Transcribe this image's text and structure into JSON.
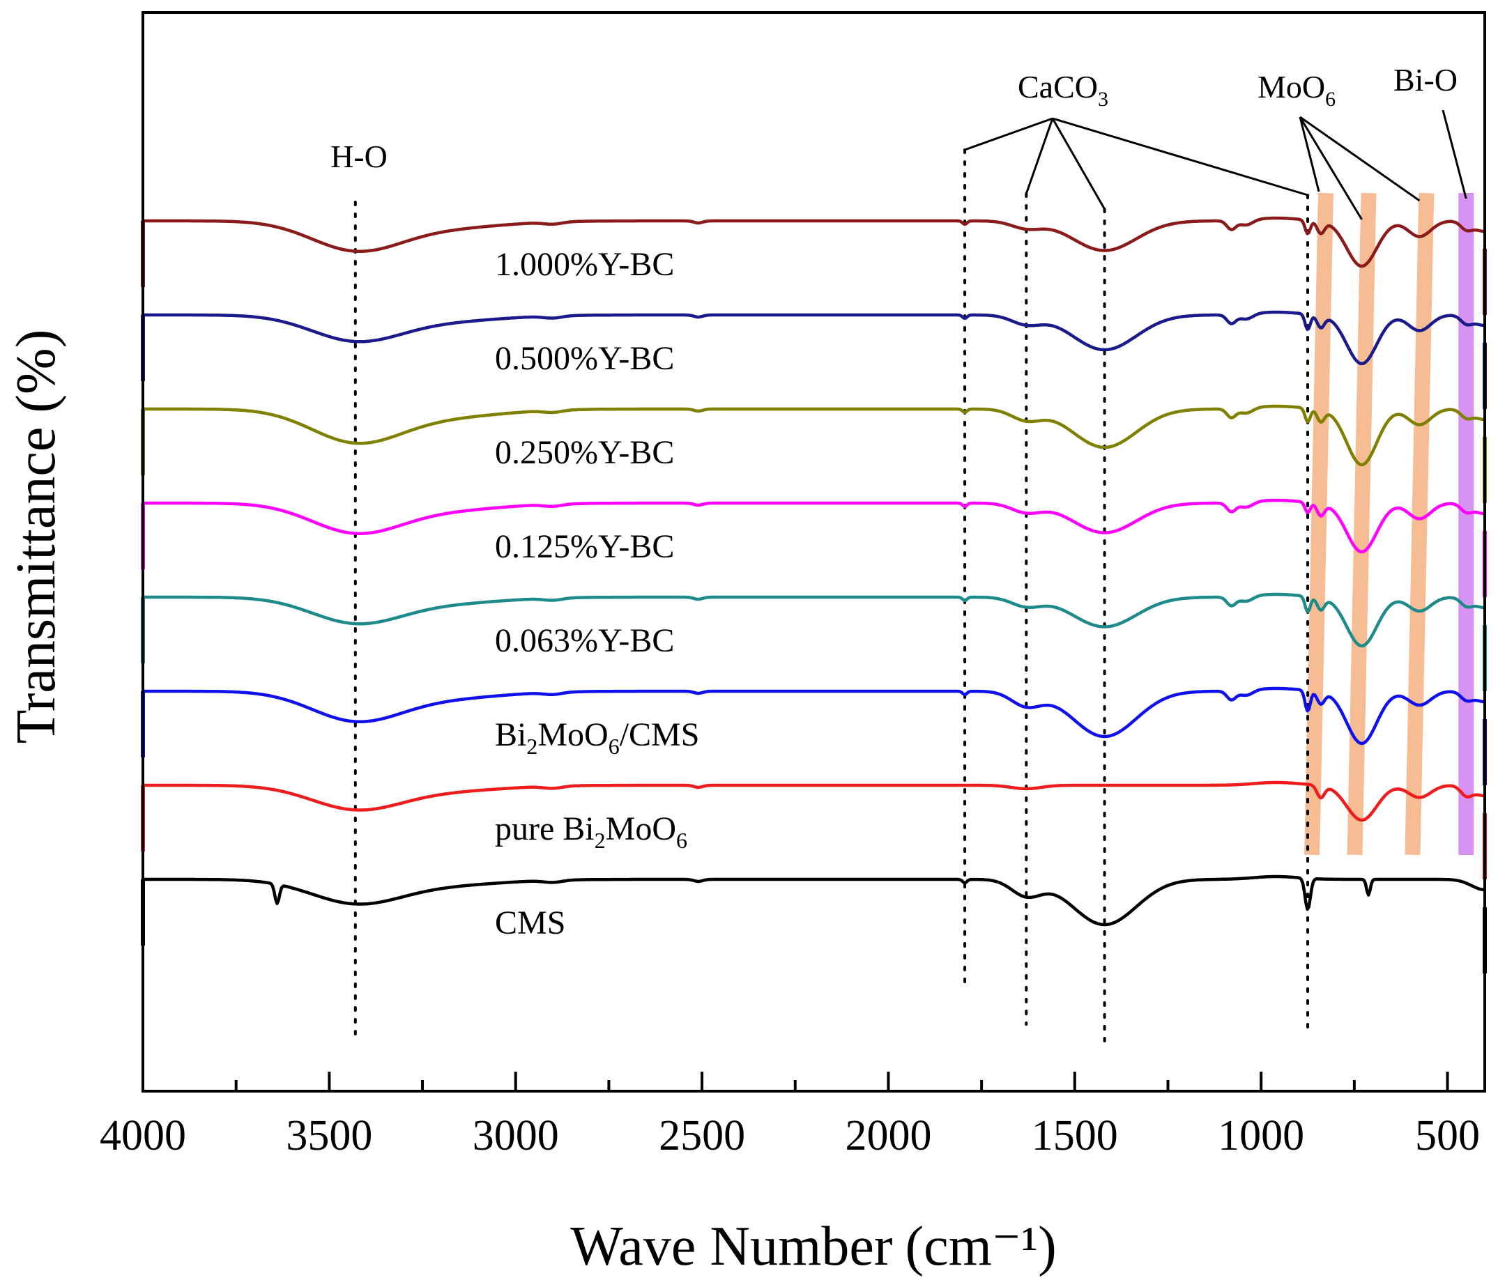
{
  "chart_data": {
    "type": "line",
    "title": "",
    "xlabel": "Wave Number",
    "xlabel_unit": "(cm⁻¹)",
    "ylabel": "Transmittance (%)",
    "xlim": [
      4000,
      400
    ],
    "x_reversed": true,
    "xticks": [
      4000,
      3500,
      3000,
      2500,
      2000,
      1500,
      1000,
      500
    ],
    "minor_tick_step": 250,
    "grid": false,
    "series": [
      {
        "name": "1.000%Y-BC",
        "label_main": "1.000%Y-BC",
        "label_sub": "",
        "label_tail": "",
        "color": "#8b1a1a",
        "offset": 7,
        "variant": "bc",
        "peaks": {
          "oh": 0.8,
          "caco3_1630": 0.2,
          "caco3_1420": 0.85,
          "sharp_875": 0.4,
          "moo6_730": 1.3,
          "moo6_580": 0.45,
          "bio_450": 0.2
        }
      },
      {
        "name": "0.500%Y-BC",
        "label_main": "0.500%Y-BC",
        "label_sub": "",
        "label_tail": "",
        "color": "#1a1a8c",
        "offset": 6,
        "variant": "bc",
        "peaks": {
          "oh": 0.7,
          "caco3_1630": 0.25,
          "caco3_1420": 1.0,
          "sharp_875": 0.45,
          "moo6_730": 1.4,
          "moo6_580": 0.45,
          "bio_450": 0.2
        }
      },
      {
        "name": "0.250%Y-BC",
        "label_main": "0.250%Y-BC",
        "label_sub": "",
        "label_tail": "",
        "color": "#808000",
        "offset": 5,
        "variant": "bc",
        "peaks": {
          "oh": 0.9,
          "caco3_1630": 0.3,
          "caco3_1420": 1.1,
          "sharp_875": 0.4,
          "moo6_730": 1.6,
          "moo6_580": 0.45,
          "bio_450": 0.2
        }
      },
      {
        "name": "0.125%Y-BC",
        "label_main": "0.125%Y-BC",
        "label_sub": "",
        "label_tail": "",
        "color": "#ff00ff",
        "offset": 4,
        "variant": "bc",
        "peaks": {
          "oh": 0.8,
          "caco3_1630": 0.25,
          "caco3_1420": 0.85,
          "sharp_875": 0.3,
          "moo6_730": 1.4,
          "moo6_580": 0.45,
          "bio_450": 0.2
        }
      },
      {
        "name": "0.063%Y-BC",
        "label_main": "0.063%Y-BC",
        "label_sub": "",
        "label_tail": "",
        "color": "#1f8a8a",
        "offset": 3,
        "variant": "bc",
        "peaks": {
          "oh": 0.7,
          "caco3_1630": 0.25,
          "caco3_1420": 0.85,
          "sharp_875": 0.45,
          "moo6_730": 1.4,
          "moo6_580": 0.4,
          "bio_450": 0.2
        }
      },
      {
        "name": "Bi2MoO6/CMS",
        "label_main": "Bi",
        "label_sub": "2",
        "label_tail": "MoO",
        "label_sub2": "6",
        "label_end": "/CMS",
        "color": "#1010ee",
        "offset": 2,
        "variant": "bc",
        "peaks": {
          "oh": 0.8,
          "caco3_1630": 0.4,
          "caco3_1420": 1.3,
          "sharp_875": 0.6,
          "moo6_730": 1.5,
          "moo6_580": 0.4,
          "bio_450": 0.2
        }
      },
      {
        "name": "pure Bi2MoO6",
        "label_main": "pure Bi",
        "label_sub": "2",
        "label_tail": "MoO",
        "label_sub2": "6",
        "label_end": "",
        "color": "#ee1c1c",
        "offset": 1,
        "variant": "pure",
        "peaks": {
          "oh": 0.65,
          "caco3_1630": 0.1,
          "caco3_1420": 0.0,
          "sharp_875": 0.0,
          "moo6_730": 1.0,
          "moo6_580": 0.35,
          "bio_450": 0.25
        }
      },
      {
        "name": "CMS",
        "label_main": "CMS",
        "label_sub": "",
        "label_tail": "",
        "color": "#000000",
        "offset": 0,
        "variant": "cms",
        "peaks": {
          "oh": 0.65,
          "caco3_1630": 0.45,
          "caco3_1420": 1.3,
          "sharp_875": 0.9,
          "moo6_730": 0.0,
          "moo6_580": 0.0,
          "bio_450": 0.0
        }
      }
    ],
    "reference_lines": [
      {
        "name": "H-O",
        "x": 3430
      },
      {
        "name": "CaCO3 (1795)",
        "x": 1795
      },
      {
        "name": "CaCO3 (1630)",
        "x": 1630
      },
      {
        "name": "CaCO3 (1420)",
        "x": 1420
      },
      {
        "name": "CaCO3 (875)",
        "x": 875
      }
    ],
    "bands": [
      {
        "name": "MoO6",
        "x": 845,
        "color": "#f4b183"
      },
      {
        "name": "MoO6",
        "x": 730,
        "color": "#f4b183"
      },
      {
        "name": "MoO6",
        "x": 575,
        "color": "#f4b183"
      },
      {
        "name": "Bi-O",
        "x": 450,
        "color": "#d080f0"
      }
    ],
    "annotations": [
      {
        "name": "H-O",
        "text_main": "H-O",
        "text_sub": "",
        "x": 3430
      },
      {
        "name": "CaCO3",
        "text_main": "CaCO",
        "text_sub": "3",
        "x": 1420,
        "targets": [
          1795,
          1630,
          1420,
          875
        ]
      },
      {
        "name": "MoO6",
        "text_main": "MoO",
        "text_sub": "6",
        "x": 820,
        "targets": [
          845,
          730,
          575
        ]
      },
      {
        "name": "Bi-O",
        "text_main": "Bi-O",
        "text_sub": "",
        "x": 450,
        "targets": [
          450
        ]
      }
    ]
  }
}
